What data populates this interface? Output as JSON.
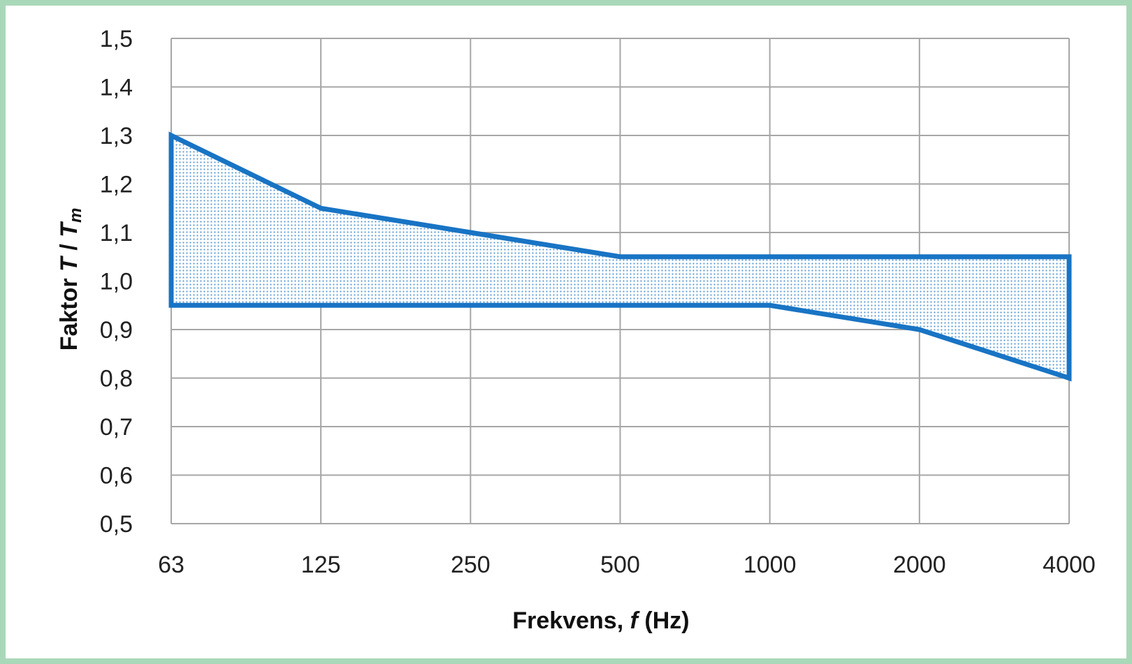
{
  "chart_data": {
    "type": "area",
    "xlabel_parts": [
      "Frekvens, ",
      "f",
      " (Hz)"
    ],
    "ylabel_parts": [
      "Faktor ",
      "T",
      " / ",
      "T",
      "m"
    ],
    "categories": [
      "63",
      "125",
      "250",
      "500",
      "1000",
      "2000",
      "4000"
    ],
    "y_ticks": [
      "1,5",
      "1,4",
      "1,3",
      "1,2",
      "1,1",
      "1,0",
      "0,9",
      "0,8",
      "0,7",
      "0,6",
      "0,5"
    ],
    "ylim": [
      0.5,
      1.5
    ],
    "grid": true,
    "series": [
      {
        "values": [
          1.3,
          1.15,
          1.1,
          1.05,
          1.05,
          1.05,
          1.05
        ]
      },
      {
        "values": [
          0.95,
          0.95,
          0.95,
          0.95,
          0.95,
          0.9,
          0.8
        ]
      }
    ],
    "colors": {
      "outline": "#1874c4",
      "fill_dot": "#5b9bd5",
      "grid": "#a6a6a6"
    }
  }
}
